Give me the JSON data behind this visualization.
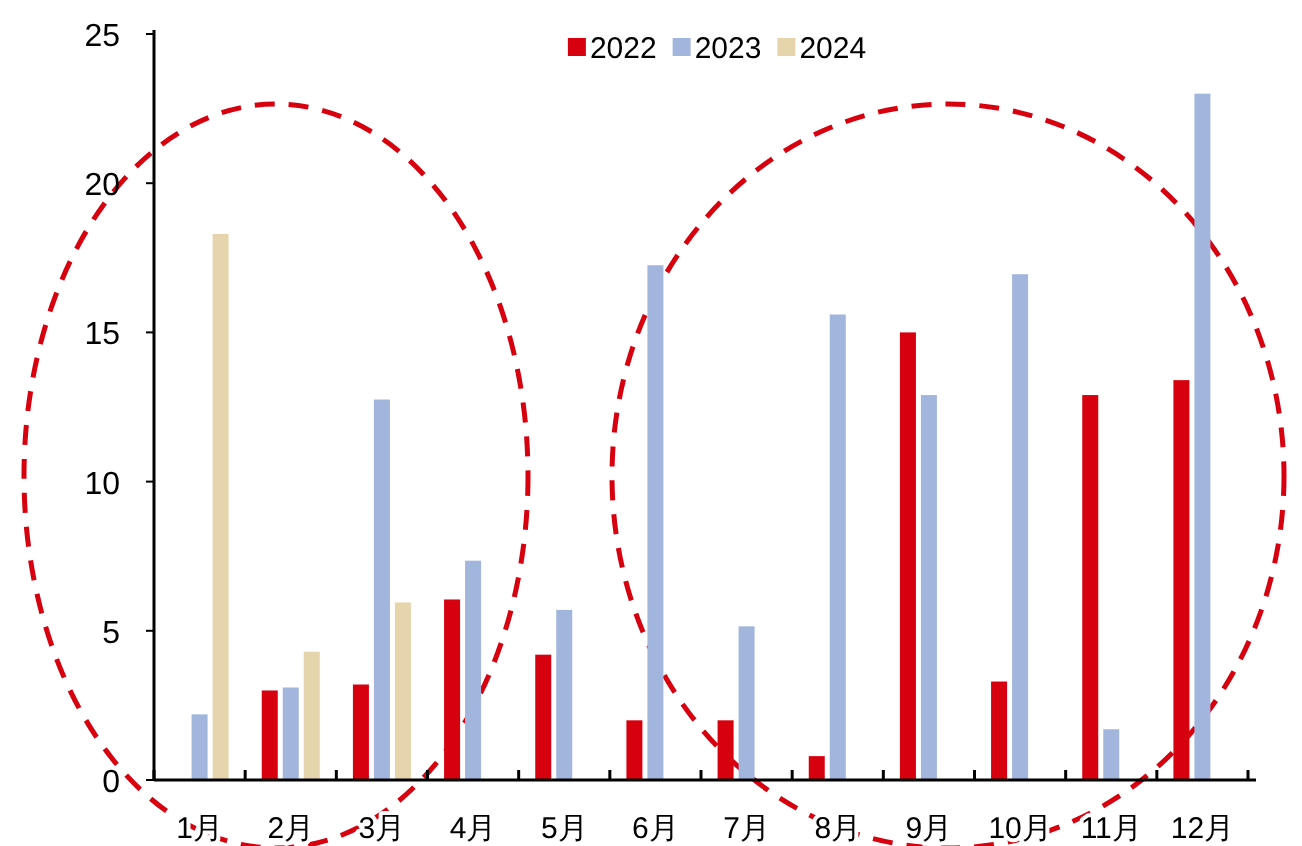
{
  "chart_data": {
    "type": "bar",
    "categories": [
      "1月",
      "2月",
      "3月",
      "4月",
      "5月",
      "6月",
      "7月",
      "8月",
      "9月",
      "10月",
      "11月",
      "12月"
    ],
    "series": [
      {
        "name": "2022",
        "color": "#d7000f",
        "values": [
          0,
          3.0,
          3.2,
          6.05,
          4.2,
          2.0,
          2.0,
          0.8,
          15.0,
          3.3,
          12.9,
          13.4
        ]
      },
      {
        "name": "2023",
        "color": "#a2b5dd",
        "values": [
          2.2,
          3.1,
          12.75,
          7.35,
          5.7,
          17.25,
          5.15,
          15.6,
          12.9,
          16.95,
          1.7,
          23.0
        ]
      },
      {
        "name": "2024",
        "color": "#e6d4ad",
        "values": [
          18.3,
          4.3,
          5.95,
          null,
          null,
          null,
          null,
          null,
          null,
          null,
          null,
          null
        ]
      }
    ],
    "ylim": [
      0,
      25
    ],
    "yticks": [
      0,
      5,
      10,
      15,
      20,
      25
    ],
    "legend": "top"
  }
}
